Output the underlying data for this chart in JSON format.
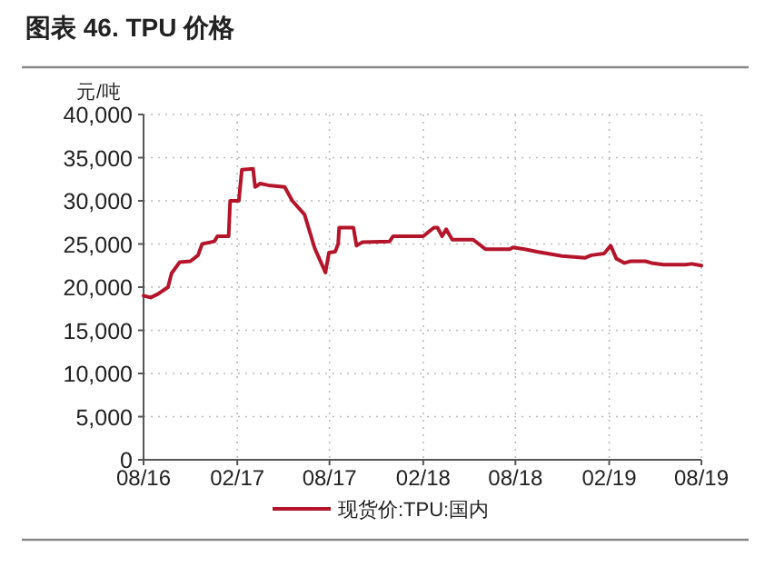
{
  "chart_data": {
    "type": "line",
    "title": "图表 46. TPU 价格",
    "ylabel": "元/吨",
    "x": [
      "2016-08-01",
      "2016-08-15",
      "2016-08-29",
      "2016-09-18",
      "2016-09-25",
      "2016-10-11",
      "2016-11-01",
      "2016-11-16",
      "2016-11-24",
      "2016-12-18",
      "2016-12-24",
      "2017-01-15",
      "2017-01-18",
      "2017-02-04",
      "2017-02-10",
      "2017-03-04",
      "2017-03-08",
      "2017-03-18",
      "2017-04-03",
      "2017-05-05",
      "2017-05-20",
      "2017-06-13",
      "2017-07-03",
      "2017-07-12",
      "2017-07-24",
      "2017-07-31",
      "2017-08-12",
      "2017-08-18",
      "2017-08-20",
      "2017-09-17",
      "2017-09-23",
      "2017-10-04",
      "2017-11-27",
      "2017-12-04",
      "2018-02-01",
      "2018-02-22",
      "2018-03-01",
      "2018-03-10",
      "2018-03-18",
      "2018-03-30",
      "2018-05-10",
      "2018-06-03",
      "2018-07-21",
      "2018-07-27",
      "2018-08-19",
      "2018-09-12",
      "2018-10-31",
      "2018-12-16",
      "2018-12-28",
      "2019-01-22",
      "2019-02-04",
      "2019-02-15",
      "2019-03-03",
      "2019-03-15",
      "2019-04-13",
      "2019-04-25",
      "2019-05-19",
      "2019-07-01",
      "2019-07-13",
      "2019-08-01"
    ],
    "series": [
      {
        "name": "现货价:TPU:国内",
        "color": "#b5152b",
        "values": [
          19000,
          18800,
          19200,
          20000,
          21600,
          22900,
          23000,
          23700,
          25000,
          25300,
          25900,
          25900,
          30000,
          30000,
          33600,
          33700,
          31600,
          32000,
          31800,
          31600,
          30000,
          28400,
          24500,
          23300,
          21700,
          24000,
          24100,
          25000,
          26900,
          26900,
          24800,
          25200,
          25300,
          25900,
          25900,
          26900,
          26900,
          25900,
          26700,
          25500,
          25500,
          24400,
          24400,
          24600,
          24400,
          24100,
          23600,
          23400,
          23700,
          23900,
          24800,
          23300,
          22800,
          23000,
          23000,
          22800,
          22600,
          22600,
          22700,
          22500
        ]
      }
    ],
    "xlim": [
      "2016-08-01",
      "2019-08-01"
    ],
    "xticks": [
      {
        "value": "2016-08-01",
        "label": "08/16"
      },
      {
        "value": "2017-02-01",
        "label": "02/17"
      },
      {
        "value": "2017-08-01",
        "label": "08/17"
      },
      {
        "value": "2018-02-01",
        "label": "02/18"
      },
      {
        "value": "2018-08-01",
        "label": "08/18"
      },
      {
        "value": "2019-02-01",
        "label": "02/19"
      },
      {
        "value": "2019-08-01",
        "label": "08/19"
      }
    ],
    "ylim": [
      0,
      40000
    ],
    "yticks": [
      0,
      {
        "value": 5000,
        "label": "5,000"
      },
      {
        "value": 10000,
        "label": "10,000"
      },
      {
        "value": 15000,
        "label": "15,000"
      },
      {
        "value": 20000,
        "label": "20,000"
      },
      {
        "value": 25000,
        "label": "25,000"
      },
      {
        "value": 30000,
        "label": "30,000"
      },
      {
        "value": 35000,
        "label": "35,000"
      },
      {
        "value": 40000,
        "label": "40,000"
      }
    ],
    "grid": true,
    "legend": "bottom",
    "line_style": "solid"
  }
}
